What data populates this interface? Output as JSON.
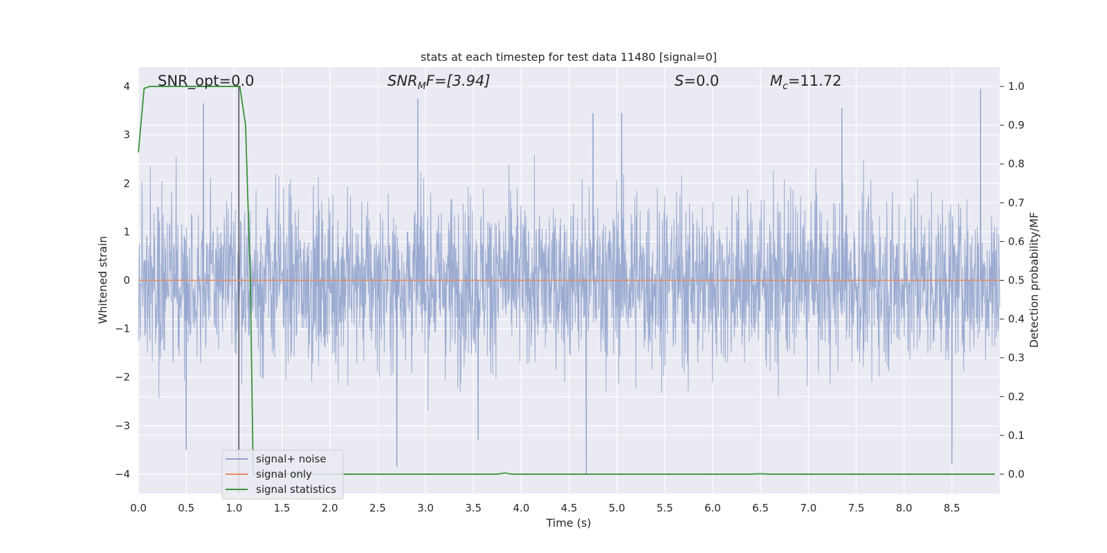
{
  "chart_data": {
    "type": "line",
    "title": "stats at each timestep for test data 11480 [signal=0]",
    "xlabel": "Time (s)",
    "ylabel": "Whitened strain",
    "y2label": "Detection probability/MF",
    "xlim": [
      0.0,
      9.0
    ],
    "ylim": [
      -4.4,
      4.4
    ],
    "y2lim": [
      -0.05,
      1.05
    ],
    "grid": true,
    "legend_position": "lower-left",
    "x_ticks": [
      "0.0",
      "0.5",
      "1.0",
      "1.5",
      "2.0",
      "2.5",
      "3.0",
      "3.5",
      "4.0",
      "4.5",
      "5.0",
      "5.5",
      "6.0",
      "6.5",
      "7.0",
      "7.5",
      "8.0",
      "8.5"
    ],
    "y_ticks": [
      "−4",
      "−3",
      "−2",
      "−1",
      "0",
      "1",
      "2",
      "3",
      "4"
    ],
    "y2_ticks": [
      "0.0",
      "0.1",
      "0.2",
      "0.3",
      "0.4",
      "0.5",
      "0.6",
      "0.7",
      "0.8",
      "0.9",
      "1.0"
    ],
    "annotations": {
      "snr_opt": "SNR_opt=0.0",
      "snr_mf_base": "SNR",
      "snr_mf_sub": "M",
      "snr_mf_rest": "F=[3.94]",
      "s_var": "S",
      "s_rest": "=0.0",
      "mc_base": "M",
      "mc_sub": "c",
      "mc_rest": "=11.72"
    },
    "marker_line_x": 1.05,
    "series": [
      {
        "name": "signal+ noise",
        "color": "#8da0cb",
        "envelope": {
          "typical_abs": 1.6,
          "peak_abs": 3.95
        },
        "notable_peaks": [
          {
            "x": 0.5,
            "y": -3.5
          },
          {
            "x": 0.68,
            "y": 3.65
          },
          {
            "x": 2.7,
            "y": -3.85
          },
          {
            "x": 2.92,
            "y": 3.75
          },
          {
            "x": 3.55,
            "y": -3.3
          },
          {
            "x": 4.68,
            "y": -4.0
          },
          {
            "x": 4.75,
            "y": 3.45
          },
          {
            "x": 5.05,
            "y": 3.45
          },
          {
            "x": 7.35,
            "y": 3.55
          },
          {
            "x": 8.5,
            "y": -3.8
          },
          {
            "x": 8.8,
            "y": 3.95
          }
        ]
      },
      {
        "name": "signal only",
        "color": "#e78a61",
        "x": [
          0.0,
          9.0
        ],
        "y": [
          0.0,
          0.0
        ]
      },
      {
        "name": "signal statistics",
        "color": "#3a923a",
        "axis": "right",
        "x": [
          0.0,
          0.06,
          0.12,
          0.2,
          0.5,
          0.8,
          1.0,
          1.06,
          1.12,
          1.17,
          1.2,
          1.3,
          2.0,
          3.0,
          3.75,
          3.83,
          3.9,
          4.5,
          6.4,
          6.5,
          6.6,
          7.5,
          8.5,
          8.95
        ],
        "y": [
          0.83,
          0.995,
          1.0,
          1.0,
          1.0,
          1.0,
          1.0,
          1.0,
          0.9,
          0.5,
          0.0,
          0.0,
          0.0,
          0.0,
          0.0,
          0.003,
          0.0,
          0.0,
          0.0,
          0.001,
          0.0,
          0.0,
          0.0,
          0.0
        ]
      }
    ]
  }
}
